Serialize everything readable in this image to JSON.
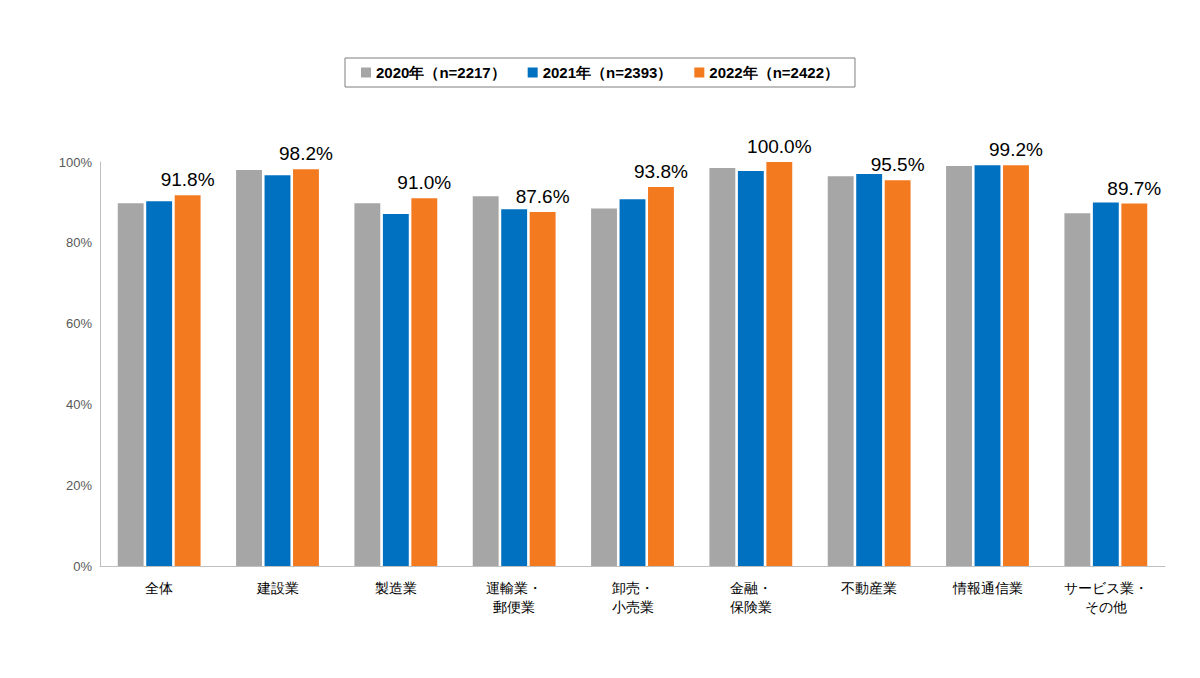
{
  "chart_data": {
    "type": "bar",
    "categories": [
      "全体",
      "建設業",
      "製造業",
      "運輸業・\n郵便業",
      "卸売・\n小売業",
      "金融・\n保険業",
      "不動産業",
      "情報通信業",
      "サービス業・\nその他"
    ],
    "series": [
      {
        "name": "2020年（n=2217）",
        "color": "#a6a6a6",
        "values": [
          89.8,
          98.0,
          89.8,
          91.5,
          88.5,
          98.5,
          96.5,
          99.0,
          87.3
        ]
      },
      {
        "name": "2021年（n=2393）",
        "color": "#0070c0",
        "values": [
          90.3,
          96.7,
          87.1,
          88.3,
          90.8,
          97.8,
          97.0,
          99.2,
          90.0
        ]
      },
      {
        "name": "2022年（n=2422）",
        "color": "#f47a20",
        "values": [
          91.8,
          98.2,
          91.0,
          87.6,
          93.8,
          100.0,
          95.5,
          99.2,
          89.7
        ],
        "data_labels": true,
        "value_labels": [
          "91.8%",
          "98.2%",
          "91.0%",
          "87.6%",
          "93.8%",
          "100.0%",
          "95.5%",
          "99.2%",
          "89.7%"
        ]
      }
    ],
    "ylim": [
      0,
      100
    ],
    "yticks": [
      {
        "value": 0,
        "label": "0%"
      },
      {
        "value": 20,
        "label": "20%"
      },
      {
        "value": 40,
        "label": "40%"
      },
      {
        "value": 60,
        "label": "60%"
      },
      {
        "value": 80,
        "label": "80%"
      },
      {
        "value": 100,
        "label": "100%"
      }
    ],
    "grid": false,
    "legend": "top"
  }
}
